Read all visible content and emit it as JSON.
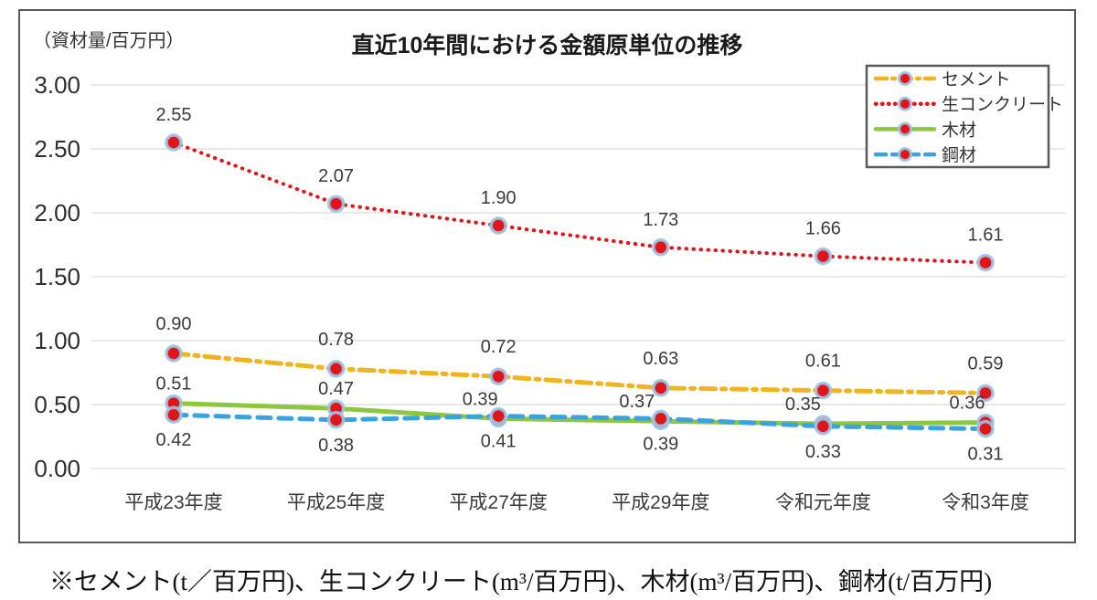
{
  "chart": {
    "unit_label": "（資材量/百万円）",
    "footnote": "※セメント(t／百万円)、生コンクリート(m³/百万円)、木材(m³/百万円)、鋼材(t/百万円)"
  },
  "chart_data": {
    "type": "line",
    "title": "直近10年間における金額原単位の推移",
    "ylabel": "（資材量/百万円）",
    "xlabel": "",
    "categories": [
      "平成23年度",
      "平成25年度",
      "平成27年度",
      "平成29年度",
      "令和元年度",
      "令和3年度"
    ],
    "y_ticks": [
      "3.00",
      "2.50",
      "2.00",
      "1.50",
      "1.00",
      "0.50",
      "0.00"
    ],
    "ylim": [
      0,
      3
    ],
    "grid": true,
    "legend_position": "top-right",
    "marker": {
      "fill": "#E01419",
      "halo": "#9DC3E6"
    },
    "colors": {
      "grid": "#D9D9D9",
      "border": "#595959",
      "text": "#3a3a3a"
    },
    "series": [
      {
        "key": "cement",
        "name": "セメント",
        "values": [
          0.9,
          0.78,
          0.72,
          0.63,
          0.61,
          0.59
        ],
        "color": "#F0B41E",
        "style": "dash-dot",
        "label_position": "above",
        "label_offset": -26,
        "label_dx": [
          0,
          0,
          0,
          0,
          0,
          0
        ]
      },
      {
        "key": "concrete",
        "name": "生コンクリート",
        "values": [
          2.55,
          2.07,
          1.9,
          1.73,
          1.66,
          1.61
        ],
        "color": "#E01419",
        "style": "dotted",
        "label_position": "above",
        "label_offset": -24,
        "label_dx": [
          0,
          0,
          0,
          0,
          0,
          0
        ]
      },
      {
        "key": "wood",
        "name": "木材",
        "values": [
          0.51,
          0.47,
          0.39,
          0.37,
          0.35,
          0.36
        ],
        "color": "#8DC63F",
        "style": "solid",
        "label_position": "above",
        "label_offset": -15,
        "label_dx": [
          0,
          0,
          -20,
          -26,
          -22,
          -20
        ]
      },
      {
        "key": "steel",
        "name": "鋼材",
        "values": [
          0.42,
          0.38,
          0.41,
          0.39,
          0.33,
          0.31
        ],
        "color": "#3AA2DE",
        "style": "dashed",
        "label_position": "below",
        "label_offset": 34,
        "label_dx": [
          0,
          0,
          0,
          0,
          0,
          0
        ]
      }
    ]
  }
}
